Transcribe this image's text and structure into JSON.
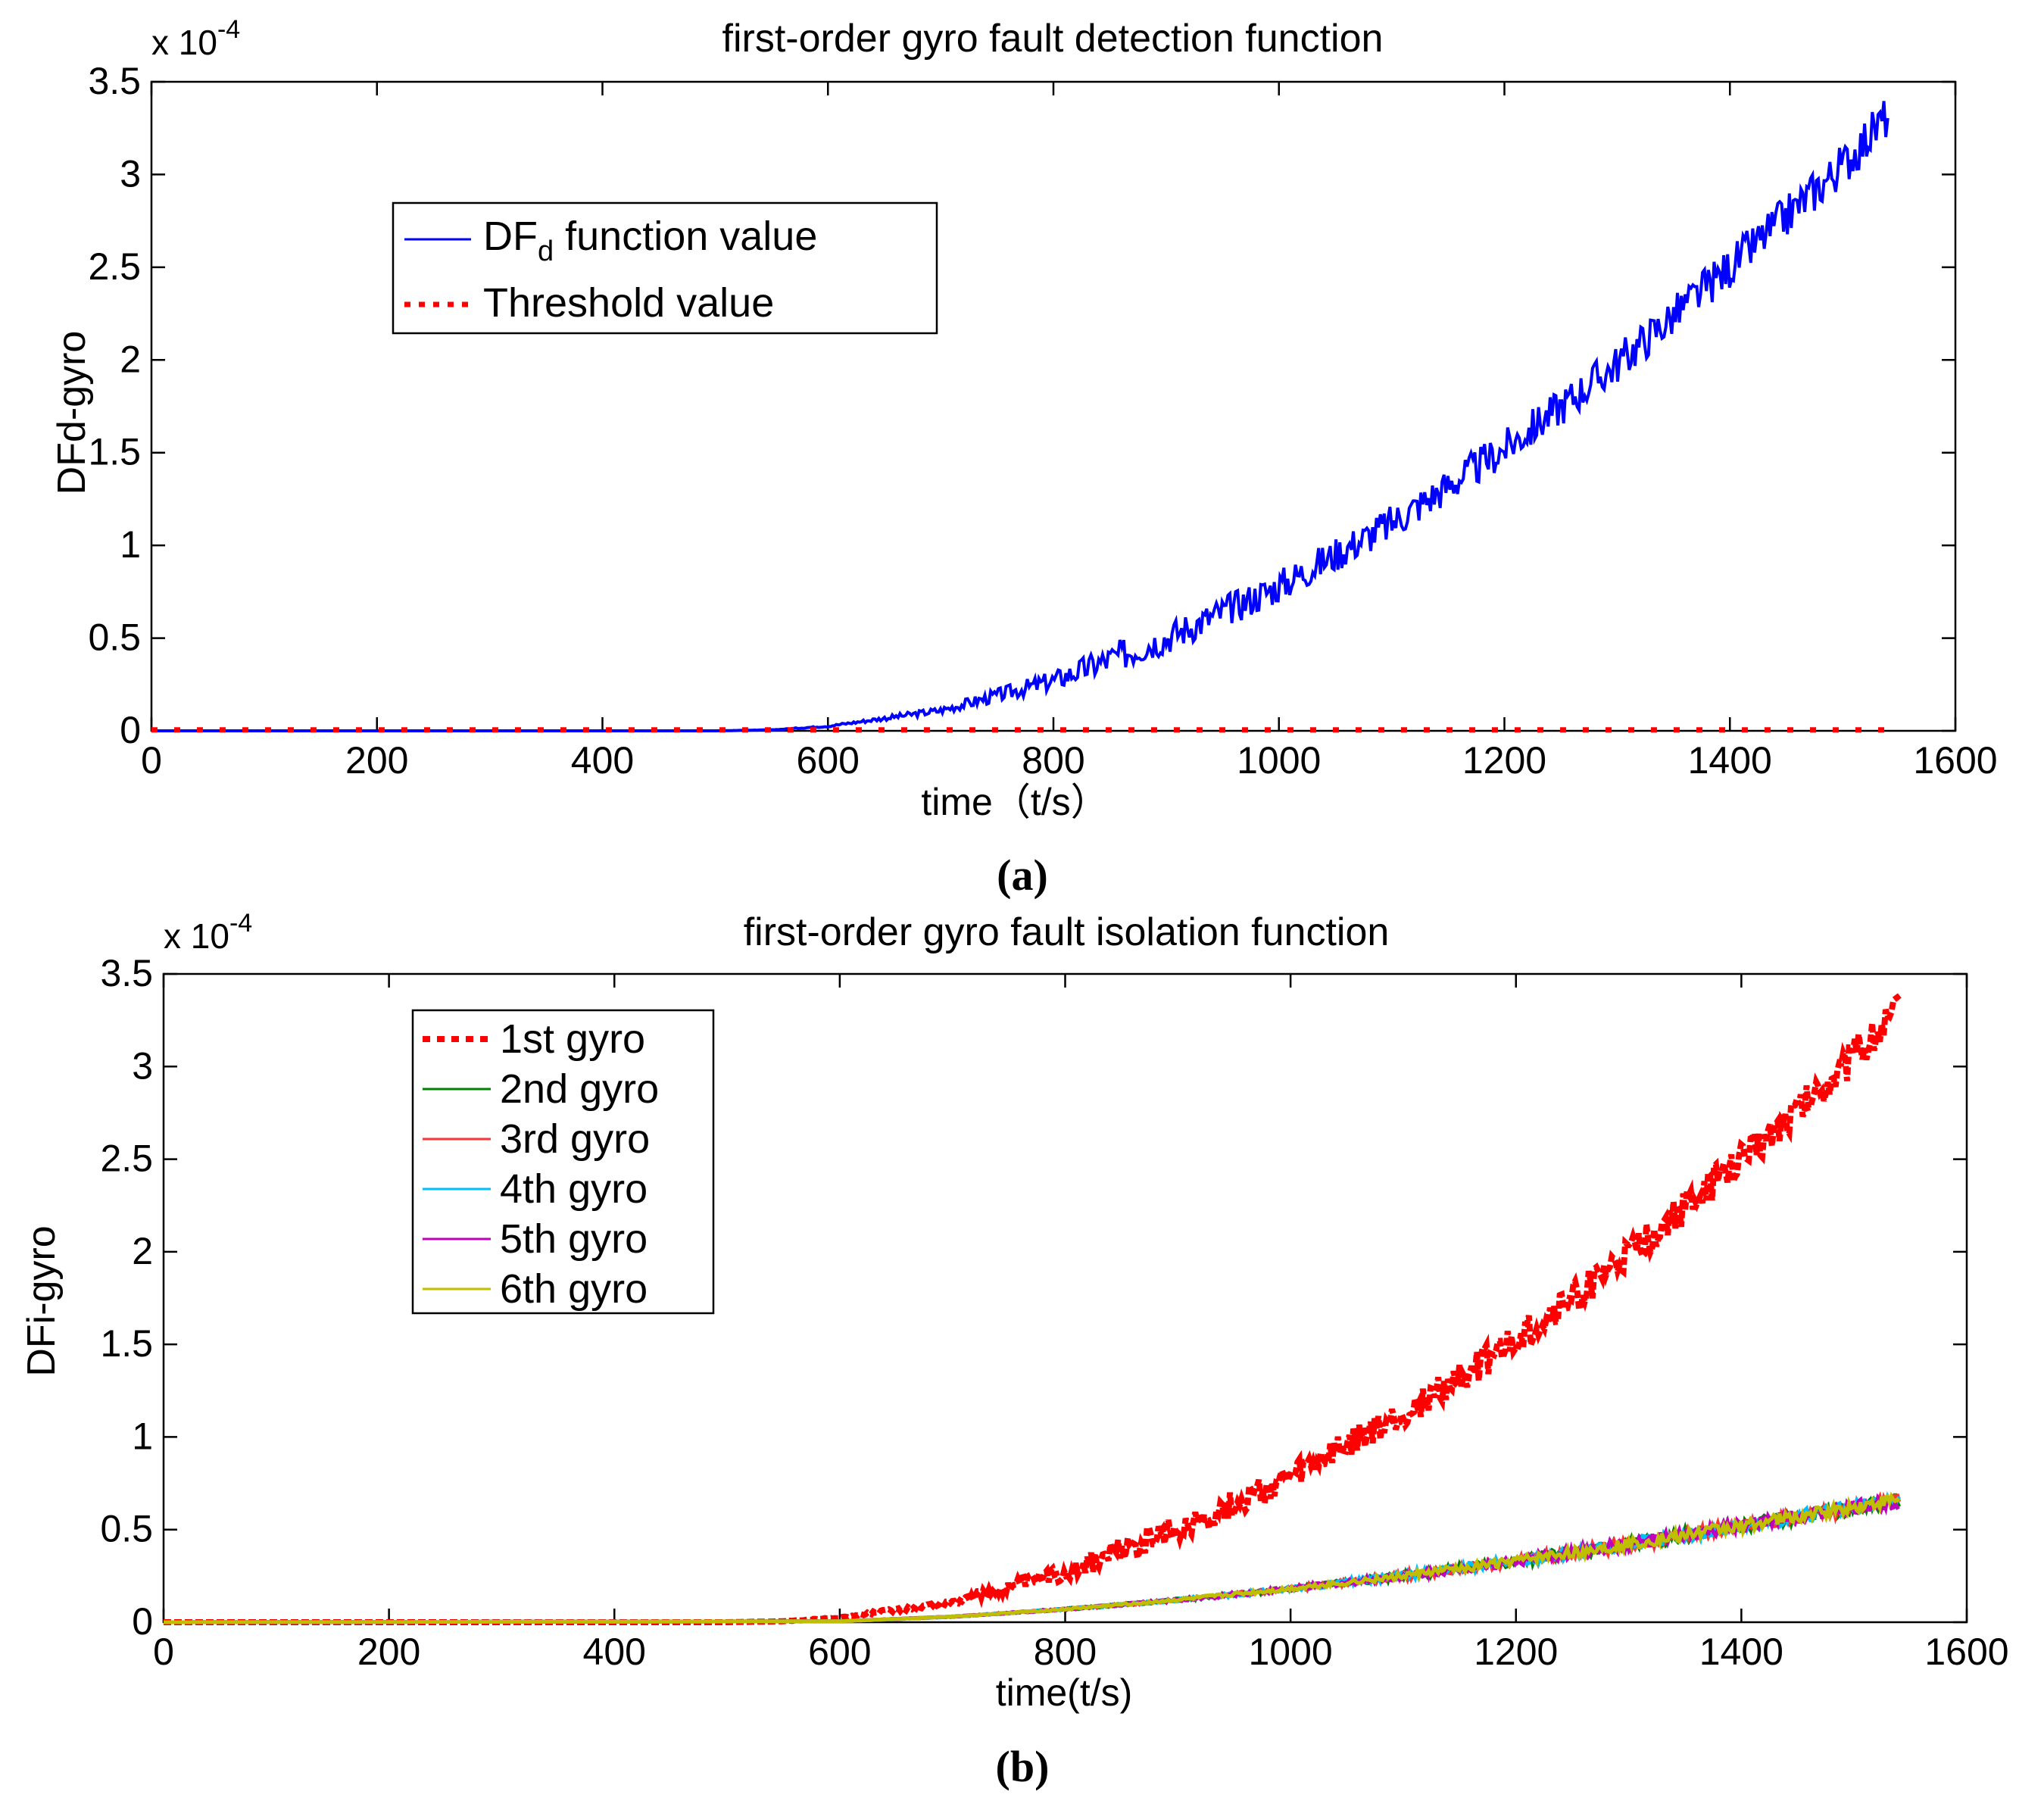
{
  "chart_data": [
    {
      "type": "line",
      "panel_label": "(a)",
      "title": "first-order gyro fault detection function",
      "xlabel": "time（t/s）",
      "ylabel": "DFd-gyro",
      "y_scale_label": "x 10",
      "y_scale_exponent": "-4",
      "xlim": [
        0,
        1600
      ],
      "ylim": [
        0,
        3.5
      ],
      "x_ticks": [
        "0",
        "200",
        "400",
        "600",
        "800",
        "1000",
        "1200",
        "1400",
        "1600"
      ],
      "y_ticks": [
        "0",
        "0.5",
        "1",
        "1.5",
        "2",
        "2.5",
        "3",
        "3.5"
      ],
      "legend_position": "top-left",
      "series": [
        {
          "name": "DF function value",
          "legend_main": "DF",
          "legend_sub": "d",
          "legend_rest": " function value",
          "color": "#0000ff",
          "style": "solid",
          "x": [
            0,
            500,
            550,
            600,
            700,
            800,
            900,
            1000,
            1100,
            1200,
            1300,
            1400,
            1500,
            1540
          ],
          "y": [
            0,
            0,
            0.005,
            0.025,
            0.11,
            0.27,
            0.5,
            0.78,
            1.12,
            1.52,
            1.98,
            2.5,
            3.05,
            3.32
          ],
          "noise": 0.12
        },
        {
          "name": "Threshold value",
          "color": "#ff0000",
          "style": "dotted",
          "x": [
            0,
            1540
          ],
          "y": [
            0.005,
            0.005
          ]
        }
      ]
    },
    {
      "type": "line",
      "panel_label": "(b)",
      "title": "first-order gyro fault isolation function",
      "xlabel": "time(t/s)",
      "ylabel": "DFi-gyro",
      "y_scale_label": "x 10",
      "y_scale_exponent": "-4",
      "xlim": [
        0,
        1600
      ],
      "ylim": [
        0,
        3.5
      ],
      "x_ticks": [
        "0",
        "200",
        "400",
        "600",
        "800",
        "1000",
        "1200",
        "1400",
        "1600"
      ],
      "y_ticks": [
        "0",
        "0.5",
        "1",
        "1.5",
        "2",
        "2.5",
        "3",
        "3.5"
      ],
      "legend_position": "top-left",
      "series": [
        {
          "name": "1st gyro",
          "color": "#ff0000",
          "style": "dotted",
          "x": [
            0,
            500,
            550,
            600,
            700,
            800,
            900,
            1000,
            1100,
            1200,
            1300,
            1400,
            1500,
            1540
          ],
          "y": [
            0,
            0,
            0.005,
            0.025,
            0.11,
            0.27,
            0.5,
            0.78,
            1.12,
            1.52,
            1.98,
            2.5,
            3.05,
            3.32
          ],
          "noise": 0.1
        },
        {
          "name": "2nd gyro",
          "color": "#008000",
          "style": "solid",
          "x": [
            0,
            600,
            700,
            800,
            900,
            1000,
            1100,
            1200,
            1300,
            1400,
            1500,
            1540
          ],
          "y": [
            0,
            0.005,
            0.03,
            0.07,
            0.12,
            0.18,
            0.25,
            0.33,
            0.42,
            0.52,
            0.62,
            0.66
          ],
          "noise": 0.04
        },
        {
          "name": "3rd gyro",
          "color": "#ff3333",
          "style": "solid",
          "x": [
            0,
            600,
            700,
            800,
            900,
            1000,
            1100,
            1200,
            1300,
            1400,
            1500,
            1540
          ],
          "y": [
            0,
            0.005,
            0.03,
            0.07,
            0.12,
            0.18,
            0.25,
            0.33,
            0.42,
            0.52,
            0.62,
            0.66
          ],
          "noise": 0.04
        },
        {
          "name": "4th gyro",
          "color": "#00bfff",
          "style": "solid",
          "x": [
            0,
            600,
            700,
            800,
            900,
            1000,
            1100,
            1200,
            1300,
            1400,
            1500,
            1540
          ],
          "y": [
            0,
            0.005,
            0.03,
            0.07,
            0.12,
            0.18,
            0.25,
            0.33,
            0.42,
            0.52,
            0.62,
            0.66
          ],
          "noise": 0.04
        },
        {
          "name": "5th gyro",
          "color": "#bf00bf",
          "style": "solid",
          "x": [
            0,
            600,
            700,
            800,
            900,
            1000,
            1100,
            1200,
            1300,
            1400,
            1500,
            1540
          ],
          "y": [
            0,
            0.005,
            0.03,
            0.07,
            0.12,
            0.18,
            0.25,
            0.33,
            0.42,
            0.52,
            0.62,
            0.66
          ],
          "noise": 0.04
        },
        {
          "name": "6th gyro",
          "color": "#bfbf00",
          "style": "solid",
          "x": [
            0,
            600,
            700,
            800,
            900,
            1000,
            1100,
            1200,
            1300,
            1400,
            1500,
            1540
          ],
          "y": [
            0,
            0.005,
            0.03,
            0.07,
            0.12,
            0.18,
            0.25,
            0.33,
            0.42,
            0.52,
            0.62,
            0.66
          ],
          "noise": 0.035
        }
      ]
    }
  ]
}
